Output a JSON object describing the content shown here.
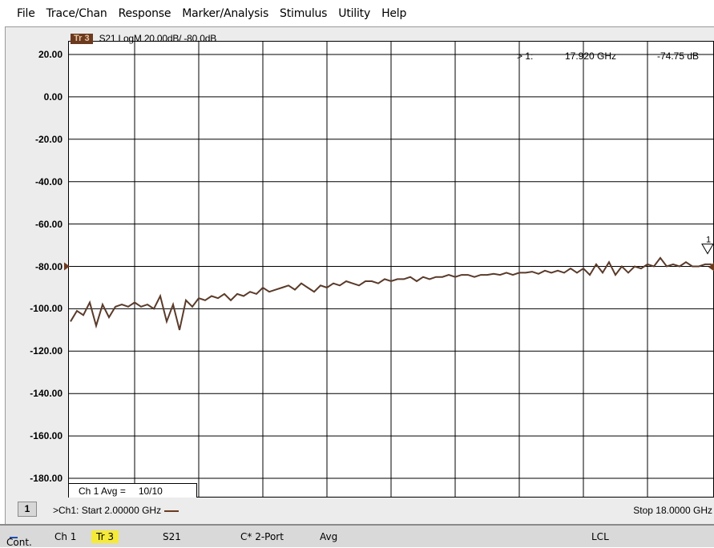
{
  "menu": [
    "File",
    "Trace/Chan",
    "Response",
    "Marker/Analysis",
    "Stimulus",
    "Utility",
    "Help"
  ],
  "trace": {
    "badge": "Tr 3",
    "title": "S21 LogM 20.00dB/ -80.0dB",
    "color": "#5a3a2a"
  },
  "marker": {
    "label": "> 1:",
    "frequency": "17.920 GHz",
    "value": "-74.75 dB",
    "number": "1"
  },
  "y_axis_labels": [
    "20.00",
    "0.00",
    "-20.00",
    "-40.00",
    "-60.00",
    "-80.00",
    "-100.00",
    "-120.00",
    "-140.00",
    "-160.00",
    "-180.00"
  ],
  "avg": {
    "label": "Ch 1 Avg =",
    "value": "10/10"
  },
  "bottom": {
    "channel": "1",
    "start": ">Ch1: Start  2.00000 GHz",
    "stop": "Stop  18.0000 GHz"
  },
  "status": {
    "cont": "Cont.",
    "channel": "Ch 1",
    "trace": "Tr 3",
    "param": "S21",
    "cal": "C* 2-Port",
    "avg": "Avg",
    "lcl": "LCL"
  },
  "chart_data": {
    "type": "line",
    "ylim": [
      -180,
      20
    ],
    "xlim": [
      2,
      18
    ],
    "reference_level": -80,
    "grid": true,
    "series": [
      {
        "x": [
          2.0,
          2.16,
          2.32,
          2.48,
          2.64,
          2.8,
          2.96,
          3.12,
          3.28,
          3.44,
          3.6,
          3.76,
          3.92,
          4.08,
          4.24,
          4.4,
          4.56,
          4.72,
          4.88,
          5.04,
          5.2,
          5.36,
          5.52,
          5.68,
          5.84,
          6.0,
          6.16,
          6.32,
          6.48,
          6.64,
          6.8,
          6.96,
          7.12,
          7.28,
          7.44,
          7.6,
          7.76,
          7.92,
          8.08,
          8.24,
          8.4,
          8.56,
          8.72,
          8.88,
          9.04,
          9.2,
          9.36,
          9.52,
          9.68,
          9.84,
          10.0,
          10.16,
          10.32,
          10.48,
          10.64,
          10.8,
          10.96,
          11.12,
          11.28,
          11.44,
          11.6,
          11.76,
          11.92,
          12.08,
          12.24,
          12.4,
          12.56,
          12.72,
          12.88,
          13.04,
          13.2,
          13.36,
          13.52,
          13.68,
          13.84,
          14.0,
          14.16,
          14.32,
          14.48,
          14.64,
          14.8,
          14.96,
          15.12,
          15.28,
          15.44,
          15.6,
          15.76,
          15.92,
          16.08,
          16.24,
          16.4,
          16.56,
          16.72,
          16.88,
          17.04,
          17.2,
          17.36,
          17.52,
          17.68,
          17.84,
          18.0
        ],
        "y": [
          -106,
          -101,
          -103,
          -97,
          -108,
          -98,
          -104,
          -99,
          -98,
          -99,
          -97,
          -99,
          -98,
          -100,
          -94,
          -106,
          -98,
          -110,
          -96,
          -99,
          -95,
          -96,
          -94,
          -95,
          -93,
          -96,
          -93,
          -94,
          -92,
          -93,
          -90,
          -92,
          -91,
          -90,
          -89,
          -91,
          -88,
          -90,
          -92,
          -89,
          -90,
          -88,
          -89,
          -87,
          -88,
          -89,
          -87,
          -87,
          -88,
          -86,
          -87,
          -86,
          -86,
          -85,
          -87,
          -85,
          -86,
          -85,
          -85,
          -84,
          -85,
          -84,
          -84,
          -85,
          -84,
          -84,
          -83.5,
          -84,
          -83,
          -84,
          -83,
          -83,
          -82.5,
          -83.5,
          -82,
          -83,
          -82,
          -83,
          -81,
          -83,
          -81,
          -84,
          -79,
          -83,
          -78,
          -84,
          -80,
          -83,
          -80,
          -81,
          -79,
          -80,
          -76,
          -80,
          -79,
          -80,
          -78,
          -80,
          -80,
          -79,
          -79
        ]
      }
    ]
  }
}
